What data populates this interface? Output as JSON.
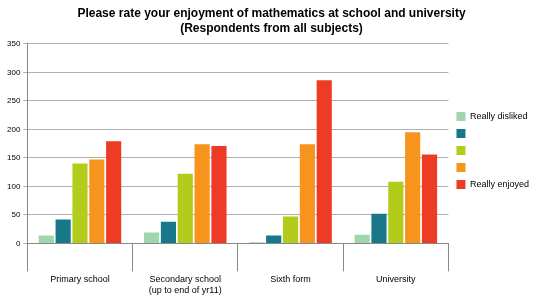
{
  "chart_data": {
    "type": "bar",
    "title": "Please rate your enjoyment of mathematics at school and university",
    "subtitle": "(Respondents from all subjects)",
    "categories": [
      "Primary school",
      "Secondary school (up to end of yr11)",
      "Sixth form",
      "University"
    ],
    "series": [
      {
        "name": "Really disliked",
        "color": "#9fd6ad",
        "values": [
          14,
          19,
          2,
          15
        ]
      },
      {
        "name": null,
        "color": "#17788a",
        "values": [
          42,
          38,
          14,
          52
        ]
      },
      {
        "name": null,
        "color": "#b3cc1c",
        "values": [
          140,
          122,
          47,
          108
        ]
      },
      {
        "name": null,
        "color": "#f7941e",
        "values": [
          147,
          174,
          174,
          195
        ]
      },
      {
        "name": "Really enjoyed",
        "color": "#ee3b26",
        "values": [
          179,
          171,
          286,
          156
        ]
      }
    ],
    "ylim": [
      0,
      350
    ],
    "yticks": [
      0,
      50,
      100,
      150,
      200,
      250,
      300,
      350
    ],
    "grid": true,
    "legend": "right"
  }
}
